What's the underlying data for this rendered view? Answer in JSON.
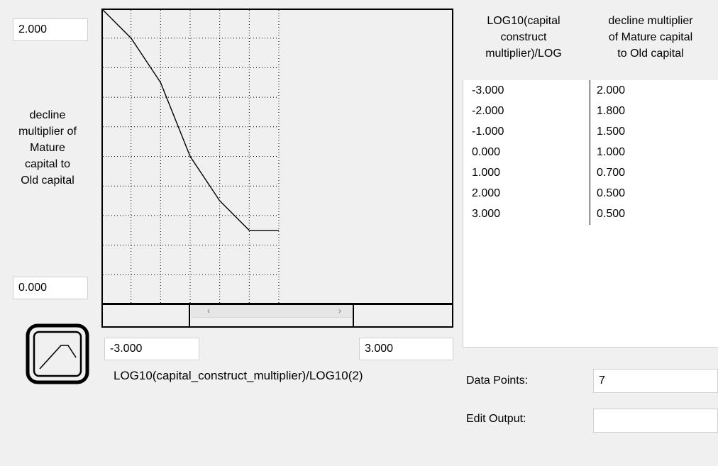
{
  "graph": {
    "y_max": "2.000",
    "y_min": "0.000",
    "x_min": "-3.000",
    "x_max": "3.000",
    "y_label_lines": [
      "decline",
      "multiplier of",
      "Mature",
      "capital to",
      "Old capital"
    ],
    "x_label": "LOG10(capital_construct_multiplier)/LOG10(2)",
    "curve_x": [
      -3,
      -2,
      -1,
      0,
      1,
      2,
      3
    ],
    "curve_y": [
      2.0,
      1.8,
      1.5,
      1.0,
      0.7,
      0.5,
      0.5
    ],
    "x_range": [
      -3,
      3
    ],
    "y_range": [
      0,
      2
    ],
    "grid": true,
    "line_color": "#000000",
    "icon": "curve-shape-icon"
  },
  "scrollbar": {
    "left_arrow": "‹",
    "right_arrow": "›"
  },
  "table": {
    "col1_header": [
      "LOG10(capital",
      "construct",
      "multiplier)/LOG"
    ],
    "col2_header": [
      "decline multiplier",
      "of Mature capital",
      "to Old capital"
    ],
    "rows": [
      {
        "x": "-3.000",
        "y": "2.000"
      },
      {
        "x": "-2.000",
        "y": "1.800"
      },
      {
        "x": "-1.000",
        "y": "1.500"
      },
      {
        "x": "0.000",
        "y": "1.000"
      },
      {
        "x": "1.000",
        "y": "0.700"
      },
      {
        "x": "2.000",
        "y": "0.500"
      },
      {
        "x": "3.000",
        "y": "0.500"
      }
    ]
  },
  "data_points": {
    "label": "Data Points:",
    "value": "7"
  },
  "edit_output": {
    "label": "Edit Output:",
    "value": ""
  }
}
